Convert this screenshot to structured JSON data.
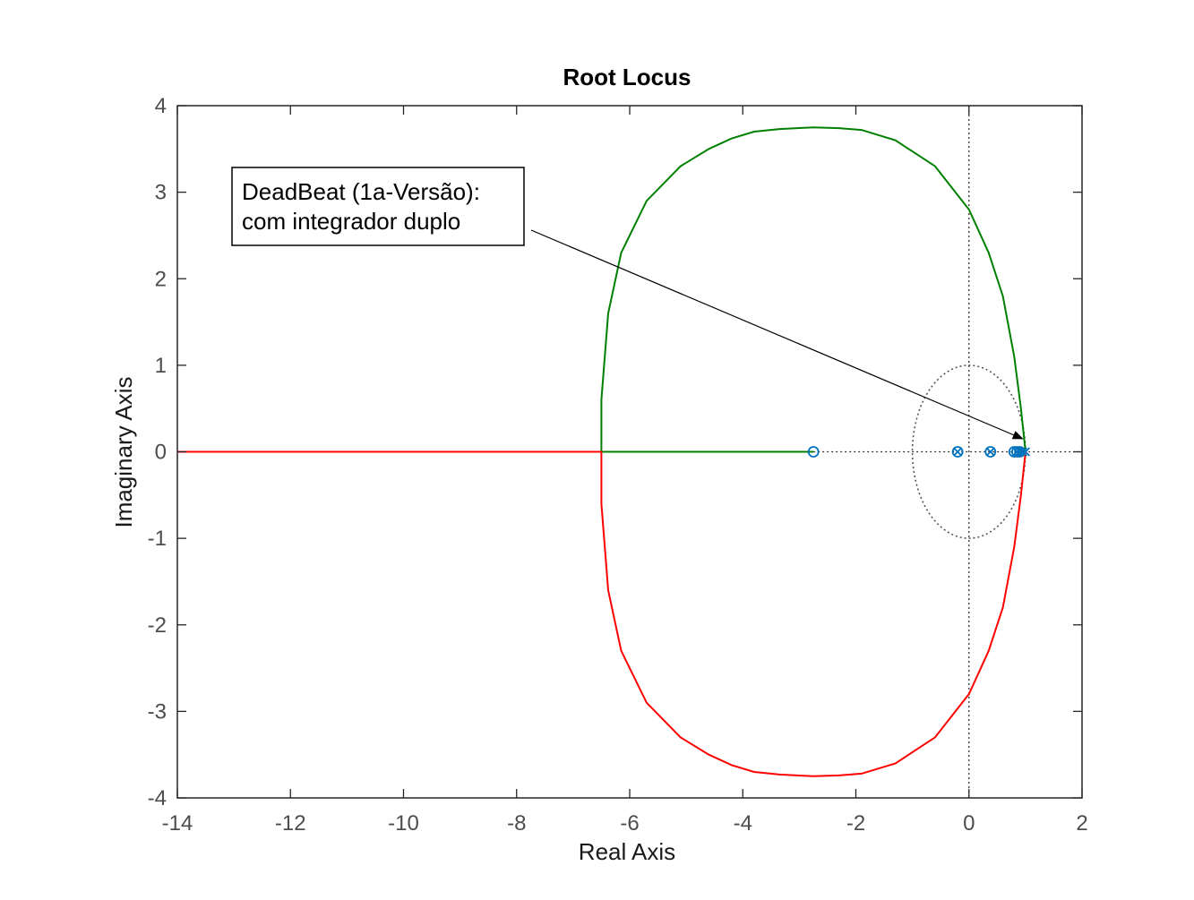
{
  "chart_data": {
    "type": "line",
    "title": "Root Locus",
    "xlabel": "Real Axis",
    "ylabel": "Imaginary Axis",
    "xlim": [
      -14,
      2
    ],
    "ylim": [
      -4,
      4
    ],
    "xticks": [
      -14,
      -12,
      -10,
      -8,
      -6,
      -4,
      -2,
      0,
      2
    ],
    "yticks": [
      -4,
      -3,
      -2,
      -1,
      0,
      1,
      2,
      3,
      4
    ],
    "grid": false,
    "legend": "none",
    "unit_circle": true,
    "series": [
      {
        "color": "#008000",
        "x": [
          -2.75,
          -4.0,
          -5.0,
          -6.0,
          -6.5,
          -6.5,
          -6.38,
          -6.15,
          -5.7,
          -5.1,
          -4.6,
          -4.2,
          -3.8,
          -3.35,
          -2.75,
          -2.3,
          -1.9,
          -1.3,
          -0.6,
          0.0,
          0.35,
          0.6,
          0.8,
          0.92,
          1.0
        ],
        "y": [
          0,
          0,
          0,
          0,
          0,
          0.6,
          1.6,
          2.3,
          2.9,
          3.3,
          3.5,
          3.62,
          3.7,
          3.73,
          3.75,
          3.74,
          3.72,
          3.6,
          3.3,
          2.8,
          2.3,
          1.8,
          1.1,
          0.5,
          0
        ]
      },
      {
        "color": "#ff0000",
        "x": [
          -14,
          -6.5,
          -6.5,
          -6.38,
          -6.15,
          -5.7,
          -5.1,
          -4.6,
          -4.2,
          -3.8,
          -3.35,
          -2.75,
          -2.3,
          -1.9,
          -1.3,
          -0.6,
          0.0,
          0.35,
          0.6,
          0.8,
          0.92,
          1.0
        ],
        "y": [
          0,
          0,
          -0.6,
          -1.6,
          -2.3,
          -2.9,
          -3.3,
          -3.5,
          -3.62,
          -3.7,
          -3.73,
          -3.75,
          -3.74,
          -3.72,
          -3.6,
          -3.3,
          -2.8,
          -2.3,
          -1.8,
          -1.1,
          -0.5,
          0
        ]
      }
    ],
    "poles": [
      -0.2,
      0.38,
      0.85,
      0.9,
      0.95,
      1.0
    ],
    "zeros": [
      -2.75,
      -0.2,
      0.38,
      0.8,
      0.85,
      0.9
    ],
    "annotation": {
      "lines": [
        "DeadBeat (1a-Versão):",
        "com integrador duplo"
      ],
      "arrow_to": [
        0.95,
        0.15
      ]
    }
  }
}
